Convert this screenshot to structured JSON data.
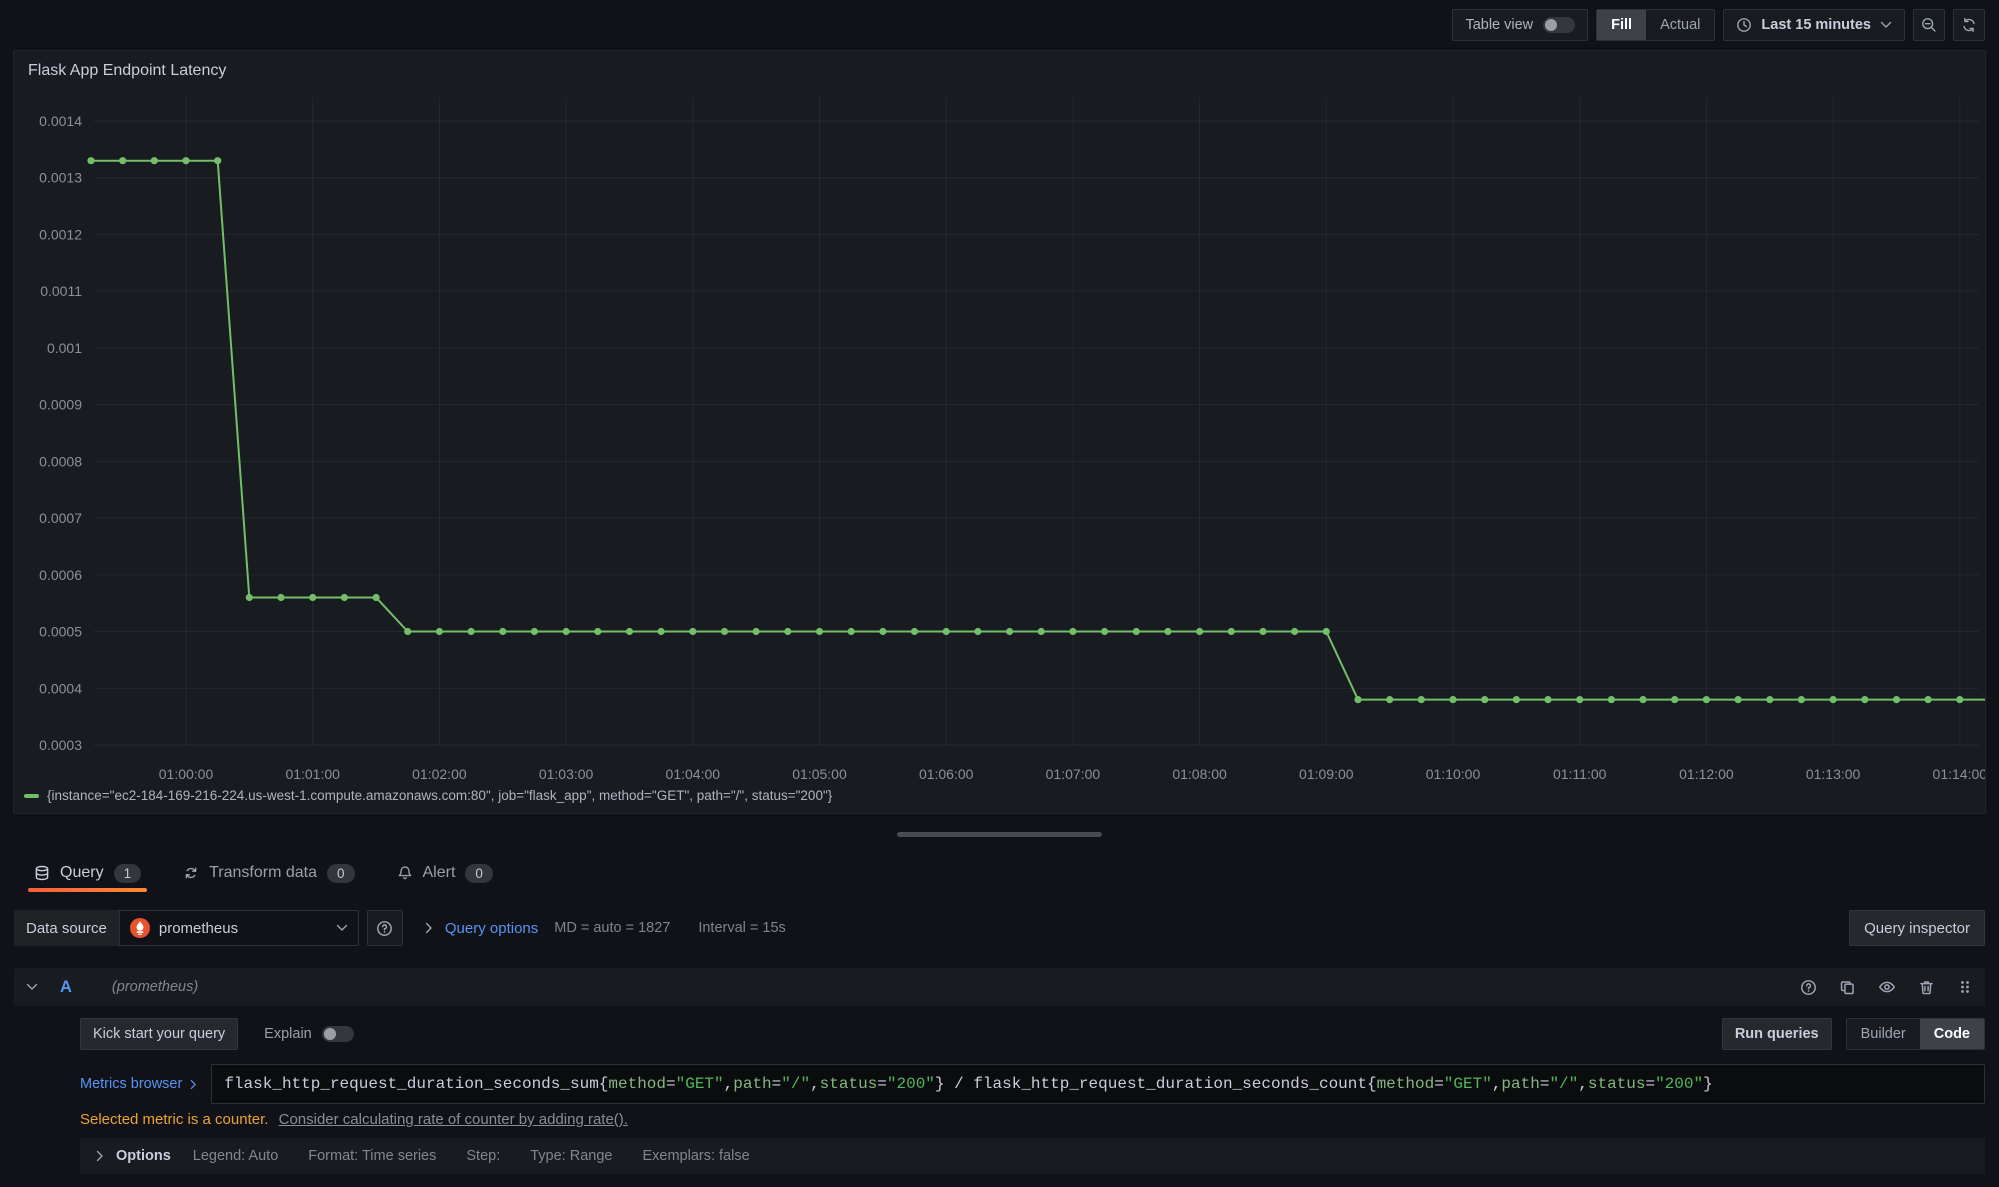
{
  "colors": {
    "accent_orange": "#ff780a",
    "series_green": "#73bf69",
    "link_blue": "#5794f2",
    "warning_orange": "#eba13c",
    "prometheus_orange": "#e6522c"
  },
  "icons": [
    "clock-icon",
    "chevron-down-icon",
    "zoom-out-icon",
    "refresh-icon",
    "database-icon",
    "transform-icon",
    "bell-icon",
    "help-circle-icon",
    "copy-icon",
    "eye-icon",
    "trash-icon",
    "drag-handle-icon",
    "chevron-right-icon",
    "prometheus-icon"
  ],
  "toolbar": {
    "table_view_label": "Table view",
    "fill_label": "Fill",
    "actual_label": "Actual",
    "time_range_label": "Last 15 minutes"
  },
  "panel": {
    "title": "Flask App Endpoint Latency",
    "legend": "{instance=\"ec2-184-169-216-224.us-west-1.compute.amazonaws.com:80\", job=\"flask_app\", method=\"GET\", path=\"/\", status=\"200\"}"
  },
  "chart_data": {
    "type": "line",
    "title": "Flask App Endpoint Latency",
    "grid": true,
    "legend_position": "bottom",
    "ylim": [
      0.0003,
      0.0014
    ],
    "y_ticks": [
      "0.0014",
      "0.0013",
      "0.0012",
      "0.0011",
      "0.001",
      "0.0009",
      "0.0008",
      "0.0007",
      "0.0006",
      "0.0005",
      "0.0004",
      "0.0003"
    ],
    "x_ticks": [
      "01:00:00",
      "01:01:00",
      "01:02:00",
      "01:03:00",
      "01:04:00",
      "01:05:00",
      "01:06:00",
      "01:07:00",
      "01:08:00",
      "01:09:00",
      "01:10:00",
      "01:11:00",
      "01:12:00",
      "01:13:00",
      "01:14:00"
    ],
    "series": [
      {
        "name": "{instance=\"ec2-184-169-216-224.us-west-1.compute.amazonaws.com:80\", job=\"flask_app\", method=\"GET\", path=\"/\", status=\"200\"}",
        "color": "#73bf69",
        "start_time": "00:59:15",
        "interval_seconds": 15,
        "values": [
          0.00133,
          0.00133,
          0.00133,
          0.00133,
          0.00133,
          0.00056,
          0.00056,
          0.00056,
          0.00056,
          0.00056,
          0.0005,
          0.0005,
          0.0005,
          0.0005,
          0.0005,
          0.0005,
          0.0005,
          0.0005,
          0.0005,
          0.0005,
          0.0005,
          0.0005,
          0.0005,
          0.0005,
          0.0005,
          0.0005,
          0.0005,
          0.0005,
          0.0005,
          0.0005,
          0.0005,
          0.0005,
          0.0005,
          0.0005,
          0.0005,
          0.0005,
          0.0005,
          0.0005,
          0.0005,
          0.0005,
          0.00038,
          0.00038,
          0.00038,
          0.00038,
          0.00038,
          0.00038,
          0.00038,
          0.00038,
          0.00038,
          0.00038,
          0.00038,
          0.00038,
          0.00038,
          0.00038,
          0.00038,
          0.00038,
          0.00038,
          0.00038,
          0.00038,
          0.00038,
          0.00038
        ]
      }
    ]
  },
  "tabs": [
    {
      "label": "Query",
      "badge": "1",
      "active": true
    },
    {
      "label": "Transform data",
      "badge": "0",
      "active": false
    },
    {
      "label": "Alert",
      "badge": "0",
      "active": false
    }
  ],
  "query_editor": {
    "data_source_label": "Data source",
    "data_source_value": "prometheus",
    "query_options_label": "Query options",
    "query_options_summary": [
      "MD = auto = 1827",
      "Interval = 15s"
    ],
    "query_inspector_label": "Query inspector",
    "row": {
      "ref": "A",
      "datasource_hint": "(prometheus)"
    },
    "kick_start_label": "Kick start your query",
    "explain_label": "Explain",
    "run_queries_label": "Run queries",
    "builder_label": "Builder",
    "code_label": "Code",
    "metrics_browser_label": "Metrics browser",
    "query_tokens": [
      {
        "t": "flask_http_request_duration_seconds_sum{",
        "c": "plain"
      },
      {
        "t": "method",
        "c": "label"
      },
      {
        "t": "=",
        "c": "op"
      },
      {
        "t": "\"GET\"",
        "c": "str"
      },
      {
        "t": ",",
        "c": "plain"
      },
      {
        "t": "path",
        "c": "label"
      },
      {
        "t": "=",
        "c": "op"
      },
      {
        "t": "\"/\"",
        "c": "str"
      },
      {
        "t": ",",
        "c": "plain"
      },
      {
        "t": "status",
        "c": "label"
      },
      {
        "t": "=",
        "c": "op"
      },
      {
        "t": "\"200\"",
        "c": "str"
      },
      {
        "t": "} / flask_http_request_duration_seconds_count{",
        "c": "plain"
      },
      {
        "t": "method",
        "c": "label"
      },
      {
        "t": "=",
        "c": "op"
      },
      {
        "t": "\"GET\"",
        "c": "str"
      },
      {
        "t": ",",
        "c": "plain"
      },
      {
        "t": "path",
        "c": "label"
      },
      {
        "t": "=",
        "c": "op"
      },
      {
        "t": "\"/\"",
        "c": "str"
      },
      {
        "t": ",",
        "c": "plain"
      },
      {
        "t": "status",
        "c": "label"
      },
      {
        "t": "=",
        "c": "op"
      },
      {
        "t": "\"200\"",
        "c": "str"
      },
      {
        "t": "}",
        "c": "plain"
      }
    ],
    "warning_text": "Selected metric is a counter.",
    "warning_link": "Consider calculating rate of counter by adding rate().",
    "options": {
      "label": "Options",
      "items": [
        "Legend: Auto",
        "Format: Time series",
        "Step:",
        "Type: Range",
        "Exemplars: false"
      ]
    }
  }
}
